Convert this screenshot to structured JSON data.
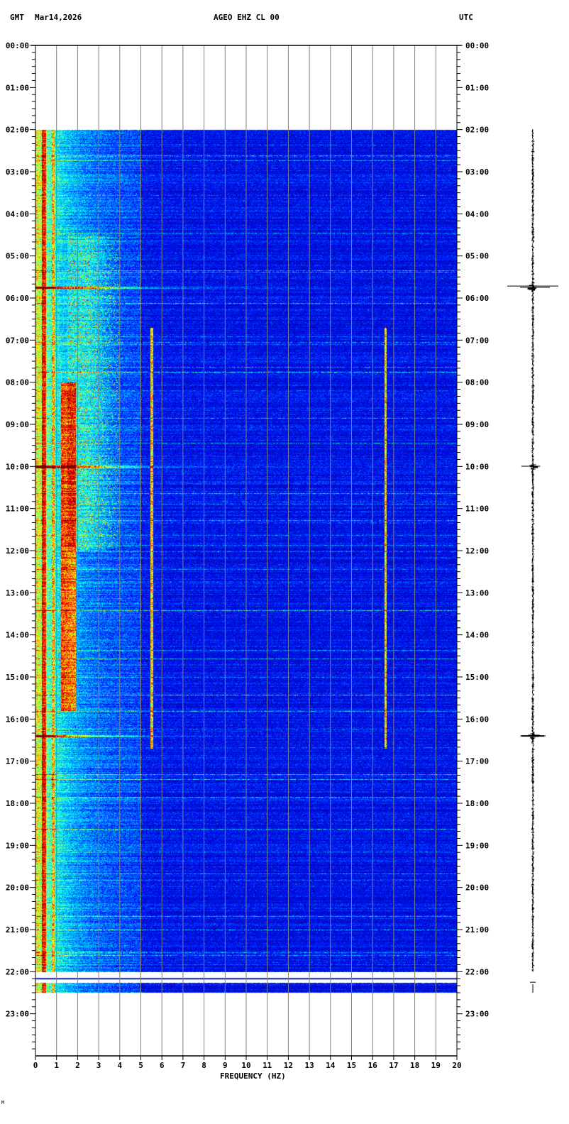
{
  "header": {
    "left_zone": "GMT",
    "date": "Mar14,2026",
    "station": "AGEO EHZ CL 00",
    "right_zone": "UTC"
  },
  "footer_mark": "M",
  "chart_data": {
    "type": "heatmap",
    "subtype": "spectrogram",
    "title": "AGEO EHZ CL 00",
    "xlabel": "FREQUENCY (HZ)",
    "xlim": [
      0,
      20
    ],
    "xticks": [
      "0",
      "1",
      "2",
      "3",
      "4",
      "5",
      "6",
      "7",
      "8",
      "9",
      "10",
      "11",
      "12",
      "13",
      "14",
      "15",
      "16",
      "17",
      "18",
      "19",
      "20"
    ],
    "ylim_hours": [
      0,
      24
    ],
    "y_direction": "down",
    "yticks": [
      "00:00",
      "01:00",
      "02:00",
      "03:00",
      "04:00",
      "05:00",
      "06:00",
      "07:00",
      "08:00",
      "09:00",
      "10:00",
      "11:00",
      "12:00",
      "13:00",
      "14:00",
      "15:00",
      "16:00",
      "17:00",
      "18:00",
      "19:00",
      "20:00",
      "21:00",
      "22:00",
      "23:00"
    ],
    "data_coverage_hours": [
      [
        2.0,
        22.0
      ],
      [
        22.25,
        22.5
      ]
    ],
    "colormap": [
      "#00008b",
      "#0000ff",
      "#00ffff",
      "#ffff00",
      "#ff0000",
      "#800000"
    ],
    "grid": true,
    "grid_color": "#808080",
    "features": {
      "microseism_band_hz": [
        1.2,
        1.9
      ],
      "microseism_strong_hours": [
        8.0,
        15.8
      ],
      "narrowband_lines_hz": [
        5.5,
        16.6
      ],
      "narrowband_hours": [
        6.7,
        16.7
      ],
      "events_hours": [
        5.75,
        10.0,
        16.4
      ]
    },
    "trace": {
      "color": "#000000",
      "hours": [
        2.0,
        22.5
      ]
    }
  }
}
